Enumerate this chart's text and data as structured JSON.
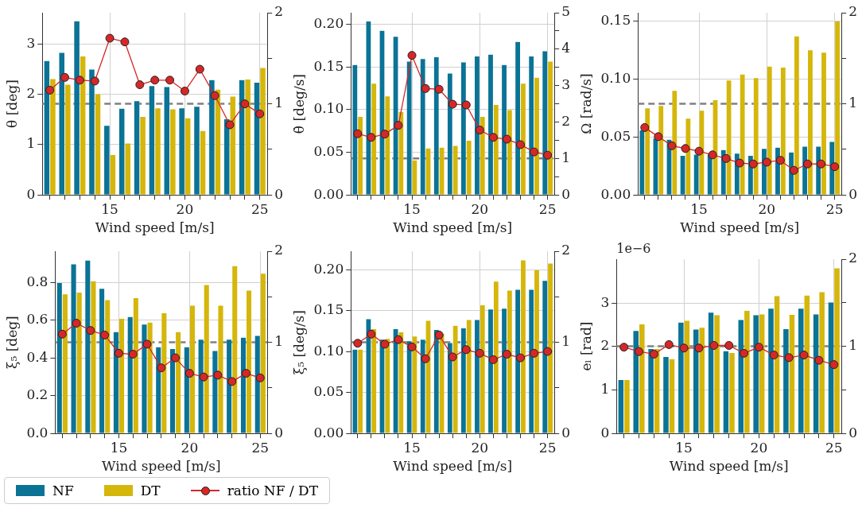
{
  "chart_data": [
    {
      "type": "bar",
      "xlabel": "Wind speed [m/s]",
      "ylabel": "θ [deg]",
      "grid": true,
      "marker": "circle",
      "legend": "bottom",
      "categories": [
        null,
        null,
        null,
        null,
        "15",
        null,
        null,
        null,
        null,
        "20",
        null,
        null,
        null,
        null,
        "25"
      ],
      "ylim": [
        0,
        3.62
      ],
      "yticks": [
        0,
        1,
        2,
        3
      ],
      "y2lim": [
        0,
        2
      ],
      "y2ticks": [
        0,
        {
          "value": 0.5,
          "label": null
        },
        1,
        {
          "value": 1.5,
          "label": null
        },
        2
      ],
      "ref_lines": [
        {
          "axis": "y2",
          "value": 1,
          "color": "#808080",
          "line_style": "dashed"
        }
      ],
      "series": [
        {
          "name": "NF",
          "color": "#0a7396",
          "values": [
            2.67,
            2.83,
            3.46,
            2.5,
            1.38,
            1.72,
            1.87,
            2.17,
            2.15,
            1.73,
            1.76,
            2.29,
            1.51,
            2.29,
            2.24
          ]
        },
        {
          "name": "DT",
          "color": "#d5b60a",
          "values": [
            2.31,
            2.2,
            2.76,
            2.01,
            0.8,
            1.03,
            1.56,
            1.73,
            1.71,
            1.53,
            1.28,
            2.1,
            1.96,
            2.3,
            2.53
          ]
        },
        {
          "name": "ratio NF / DT",
          "type": "line",
          "axis": "y2",
          "color": "#d62728",
          "values": [
            1.15,
            1.29,
            1.26,
            1.25,
            1.72,
            1.68,
            1.21,
            1.26,
            1.26,
            1.14,
            1.38,
            1.09,
            0.77,
            1.0,
            0.89
          ]
        }
      ]
    },
    {
      "type": "bar",
      "xlabel": "Wind speed [m/s]",
      "ylabel": "θ̇ [deg/s]",
      "grid": true,
      "marker": "circle",
      "categories": [
        null,
        null,
        null,
        null,
        "15",
        null,
        null,
        null,
        null,
        "20",
        null,
        null,
        null,
        null,
        "25"
      ],
      "ylim": [
        0,
        0.2138
      ],
      "yticks": [
        {
          "value": 0,
          "label": "0.00"
        },
        0.05,
        {
          "value": 0.1,
          "label": "0.10"
        },
        0.15,
        {
          "value": 0.2,
          "label": "0.20"
        }
      ],
      "y2lim": [
        0,
        5
      ],
      "y2ticks": [
        0,
        {
          "value": 0.5,
          "label": null
        },
        1,
        {
          "value": 1.5,
          "label": null
        },
        2,
        {
          "value": 2.5,
          "label": null
        },
        3,
        {
          "value": 3.5,
          "label": null
        },
        4,
        {
          "value": 4.5,
          "label": null
        },
        5
      ],
      "ref_lines": [
        {
          "axis": "y2",
          "value": 1,
          "color": "#808080",
          "line_style": "dashed"
        }
      ],
      "series": [
        {
          "color": "#0a7396",
          "values": [
            0.153,
            0.204,
            0.193,
            0.186,
            0.157,
            0.16,
            0.162,
            0.143,
            0.156,
            0.163,
            0.165,
            0.153,
            0.18,
            0.163,
            0.169
          ]
        },
        {
          "color": "#d5b60a",
          "values": [
            0.092,
            0.131,
            0.116,
            0.098,
            0.041,
            0.055,
            0.056,
            0.058,
            0.064,
            0.092,
            0.106,
            0.1,
            0.131,
            0.138,
            0.157
          ]
        },
        {
          "type": "line",
          "axis": "y2",
          "color": "#d62728",
          "values": [
            1.68,
            1.58,
            1.67,
            1.91,
            3.83,
            2.92,
            2.9,
            2.49,
            2.47,
            1.78,
            1.58,
            1.53,
            1.38,
            1.18,
            1.09
          ]
        }
      ]
    },
    {
      "type": "bar",
      "xlabel": "Wind speed [m/s]",
      "ylabel": "Ω [rad/s]",
      "grid": true,
      "marker": "circle",
      "categories": [
        null,
        null,
        null,
        null,
        "15",
        null,
        null,
        null,
        null,
        "20",
        null,
        null,
        null,
        null,
        "25"
      ],
      "ylim": [
        0,
        0.157
      ],
      "yticks": [
        {
          "value": 0,
          "label": "0.00"
        },
        0.05,
        {
          "value": 0.1,
          "label": "0.10"
        },
        0.15
      ],
      "y2lim": [
        0,
        2
      ],
      "y2ticks": [
        0,
        {
          "value": 0.5,
          "label": null
        },
        1,
        {
          "value": 1.5,
          "label": null
        },
        2
      ],
      "ref_lines": [
        {
          "axis": "y2",
          "value": 1,
          "color": "#808080",
          "line_style": "dashed"
        }
      ],
      "series": [
        {
          "color": "#0a7396",
          "values": [
            0.056,
            0.049,
            0.048,
            0.034,
            0.035,
            0.035,
            0.039,
            0.036,
            0.034,
            0.04,
            0.041,
            0.037,
            0.042,
            0.042,
            0.046
          ]
        },
        {
          "color": "#d5b60a",
          "values": [
            0.075,
            0.077,
            0.09,
            0.066,
            0.073,
            0.082,
            0.099,
            0.104,
            0.101,
            0.111,
            0.11,
            0.137,
            0.125,
            0.123,
            0.15
          ]
        },
        {
          "type": "line",
          "axis": "y2",
          "color": "#d62728",
          "values": [
            0.74,
            0.64,
            0.54,
            0.51,
            0.48,
            0.44,
            0.4,
            0.35,
            0.34,
            0.36,
            0.38,
            0.27,
            0.34,
            0.34,
            0.31
          ]
        }
      ]
    },
    {
      "type": "bar",
      "xlabel": "Wind speed [m/s]",
      "ylabel": "ξ₅ [deg]",
      "grid": true,
      "marker": "circle",
      "categories": [
        null,
        null,
        null,
        null,
        "15",
        null,
        null,
        null,
        null,
        "20",
        null,
        null,
        null,
        null,
        "25"
      ],
      "ylim": [
        0,
        0.967
      ],
      "yticks": [
        {
          "value": 0,
          "label": "0.0"
        },
        0.2,
        0.4,
        0.6,
        0.8
      ],
      "y2lim": [
        0,
        2
      ],
      "y2ticks": [
        0,
        {
          "value": 0.5,
          "label": null
        },
        1,
        {
          "value": 1.5,
          "label": null
        },
        2
      ],
      "ref_lines": [
        {
          "axis": "y2",
          "value": 1,
          "color": "#808080",
          "line_style": "dashed"
        }
      ],
      "series": [
        {
          "color": "#0a7396",
          "values": [
            0.8,
            0.9,
            0.92,
            0.77,
            0.54,
            0.62,
            0.58,
            0.46,
            0.45,
            0.46,
            0.5,
            0.44,
            0.5,
            0.51,
            0.52
          ]
        },
        {
          "color": "#d5b60a",
          "values": [
            0.74,
            0.75,
            0.81,
            0.71,
            0.61,
            0.72,
            0.59,
            0.64,
            0.54,
            0.68,
            0.79,
            0.68,
            0.89,
            0.76,
            0.85
          ]
        },
        {
          "type": "line",
          "axis": "y2",
          "color": "#d62728",
          "values": [
            1.09,
            1.21,
            1.13,
            1.08,
            0.88,
            0.87,
            0.98,
            0.72,
            0.83,
            0.66,
            0.62,
            0.64,
            0.57,
            0.66,
            0.61
          ]
        }
      ]
    },
    {
      "type": "bar",
      "xlabel": "Wind speed [m/s]",
      "ylabel": "ξ̇₅ [deg/s]",
      "grid": true,
      "marker": "circle",
      "categories": [
        null,
        null,
        null,
        null,
        "15",
        null,
        null,
        null,
        null,
        "20",
        null,
        null,
        null,
        null,
        "25"
      ],
      "ylim": [
        0,
        0.2226
      ],
      "yticks": [
        {
          "value": 0,
          "label": "0.00"
        },
        0.05,
        {
          "value": 0.1,
          "label": "0.10"
        },
        0.15,
        {
          "value": 0.2,
          "label": "0.20"
        }
      ],
      "y2lim": [
        0,
        2
      ],
      "y2ticks": [
        0,
        {
          "value": 0.5,
          "label": null
        },
        1,
        {
          "value": 1.5,
          "label": null
        },
        2
      ],
      "ref_lines": [
        {
          "axis": "y2",
          "value": 1,
          "color": "#808080",
          "line_style": "dashed"
        }
      ],
      "series": [
        {
          "color": "#0a7396",
          "values": [
            0.103,
            0.14,
            0.115,
            0.128,
            0.113,
            0.115,
            0.127,
            0.111,
            0.129,
            0.139,
            0.152,
            0.153,
            0.176,
            0.176,
            0.187
          ]
        },
        {
          "color": "#d5b60a",
          "values": [
            0.103,
            0.128,
            0.116,
            0.124,
            0.119,
            0.138,
            0.122,
            0.132,
            0.139,
            0.157,
            0.186,
            0.175,
            0.212,
            0.2,
            0.208
          ]
        },
        {
          "type": "line",
          "axis": "y2",
          "color": "#d62728",
          "values": [
            0.99,
            1.09,
            0.98,
            1.03,
            0.95,
            0.82,
            1.08,
            0.84,
            0.92,
            0.88,
            0.81,
            0.87,
            0.83,
            0.88,
            0.9
          ]
        }
      ]
    },
    {
      "type": "bar",
      "xlabel": "Wind speed [m/s]",
      "ylabel": "eₗ [rad]",
      "grid": true,
      "marker": "circle",
      "annotations": [
        "1e−6"
      ],
      "categories": [
        null,
        null,
        null,
        null,
        "15",
        null,
        null,
        null,
        null,
        "20",
        null,
        null,
        null,
        null,
        "25"
      ],
      "ylim": [
        0,
        4.01
      ],
      "yticks": [
        0,
        1,
        2,
        3
      ],
      "y2lim": [
        0,
        2
      ],
      "y2ticks": [
        0,
        {
          "value": 0.5,
          "label": null
        },
        1,
        {
          "value": 1.5,
          "label": null
        },
        2
      ],
      "ref_lines": [
        {
          "axis": "y2",
          "value": 1,
          "color": "#808080",
          "line_style": "dashed"
        }
      ],
      "series": [
        {
          "color": "#0a7396",
          "values": [
            1.24,
            2.37,
            1.95,
            1.77,
            2.56,
            2.4,
            2.79,
            1.9,
            2.62,
            2.73,
            2.88,
            2.41,
            2.88,
            2.75,
            3.02
          ]
        },
        {
          "color": "#d5b60a",
          "values": [
            1.24,
            2.52,
            1.95,
            1.72,
            2.6,
            2.44,
            2.73,
            1.86,
            2.83,
            2.75,
            3.17,
            2.74,
            3.18,
            3.26,
            3.81
          ]
        },
        {
          "type": "line",
          "axis": "y2",
          "color": "#d62728",
          "values": [
            0.99,
            0.94,
            0.91,
            1.02,
            0.98,
            0.98,
            1.01,
            1.01,
            0.92,
            0.99,
            0.9,
            0.87,
            0.9,
            0.84,
            0.79
          ]
        }
      ]
    }
  ]
}
